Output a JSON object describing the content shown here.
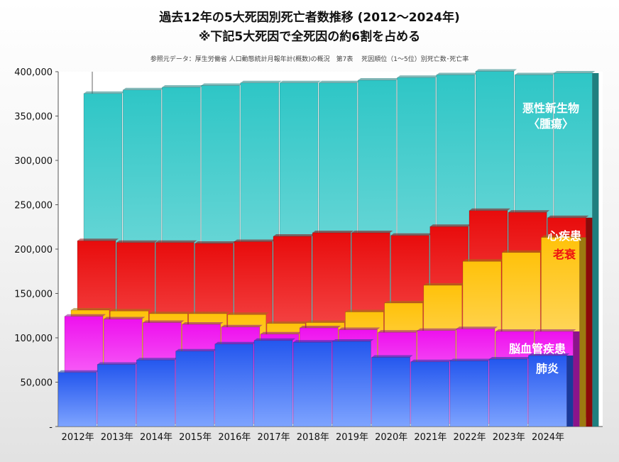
{
  "chart_data": {
    "type": "bar",
    "title": "過去12年の5大死因別死亡者数推移 (2012～2024年)",
    "subtitle": "※下記5大死因で全死因の約6割を占める",
    "source": "参照元データ：厚生労働省 人口動態統計月報年計(概数)の概況　第7表　 死因順位（1～5位）別死亡数･死亡率",
    "categories": [
      "2012年",
      "2013年",
      "2014年",
      "2015年",
      "2016年",
      "2017年",
      "2018年",
      "2019年",
      "2020年",
      "2021年",
      "2022年",
      "2023年",
      "2024年"
    ],
    "y_ticks": [
      "400,000",
      "350,000",
      "300,000",
      "250,000",
      "200,000",
      "150,000",
      "100,000",
      "50,000",
      "-"
    ],
    "ylim": [
      0,
      400000
    ],
    "series": [
      {
        "name": "悪性新生物〈腫瘍〉",
        "color": "#33c7c7",
        "values": [
          361000,
          365000,
          368000,
          370000,
          373000,
          373000,
          373000,
          376000,
          379000,
          382000,
          386000,
          382000,
          384000
        ]
      },
      {
        "name": "心疾患",
        "color": "#ee1111",
        "values": [
          199000,
          197000,
          197000,
          196000,
          198000,
          204000,
          208000,
          208000,
          205000,
          215000,
          233000,
          231000,
          225000
        ]
      },
      {
        "name": "老衰",
        "color": "#ffc61a",
        "values": [
          124000,
          123000,
          120000,
          120000,
          119000,
          109000,
          110000,
          122000,
          132000,
          152000,
          179000,
          189000,
          206000
        ]
      },
      {
        "name": "脳血管疾患",
        "color": "#ee22ee",
        "values": [
          121000,
          118000,
          114000,
          112000,
          109000,
          101000,
          108000,
          106000,
          103000,
          105000,
          107000,
          104000,
          104000
        ]
      },
      {
        "name": "肺炎",
        "color": "#2255ee",
        "values": [
          61000,
          70000,
          75000,
          85000,
          93000,
          97000,
          95000,
          96000,
          78000,
          73000,
          74000,
          76000,
          80000
        ]
      }
    ]
  }
}
